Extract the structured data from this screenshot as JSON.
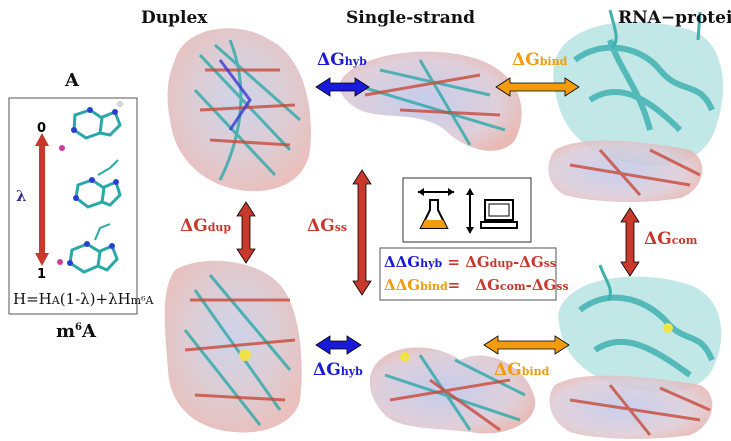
{
  "headers": {
    "duplex": "Duplex",
    "single": "Single-strand",
    "rnaprotein": "RNA−protein"
  },
  "monomer": {
    "top": "A",
    "bottom_base": "m",
    "bottom_sup": "6",
    "bottom_end": "A"
  },
  "lambda_panel": {
    "start": "0",
    "end": "1",
    "lambda": "λ",
    "hamiltonian": "H=H",
    "h_sub_a": "A",
    "h_mid": "(1-λ)+λH",
    "h_sub_m6a": "m⁶A"
  },
  "labels": {
    "dg_hyb_top": {
      "delta": "ΔG",
      "sub": "hyb"
    },
    "dg_bind_top": {
      "delta": "ΔG",
      "sub": "bind"
    },
    "dg_dup": {
      "delta": "ΔG",
      "sub": "dup"
    },
    "dg_ss": {
      "delta": "ΔG",
      "sub": "ss"
    },
    "dg_com": {
      "delta": "ΔG",
      "sub": "com"
    },
    "dg_hyb_bottom": {
      "delta": "ΔG",
      "sub": "hyb"
    },
    "dg_bind_bottom": {
      "delta": "ΔG",
      "sub": "bind"
    }
  },
  "equations": {
    "line1": {
      "lhs": "ΔΔG",
      "lhs_sub": "hyb",
      "eq": " = ",
      "t1": "ΔG",
      "t1_sub": "dup",
      "minus": "-",
      "t2": "ΔG",
      "t2_sub": "ss"
    },
    "line2": {
      "lhs": "ΔΔG",
      "lhs_sub": "bind",
      "eq": "= ",
      "t1": "ΔG",
      "t1_sub": "com",
      "minus": "-",
      "t2": "ΔG",
      "t2_sub": "ss"
    }
  },
  "colors": {
    "blue": "#1a1adb",
    "orange": "#f29b0c",
    "red": "#c8392b",
    "purple": "#3b2a8a"
  }
}
